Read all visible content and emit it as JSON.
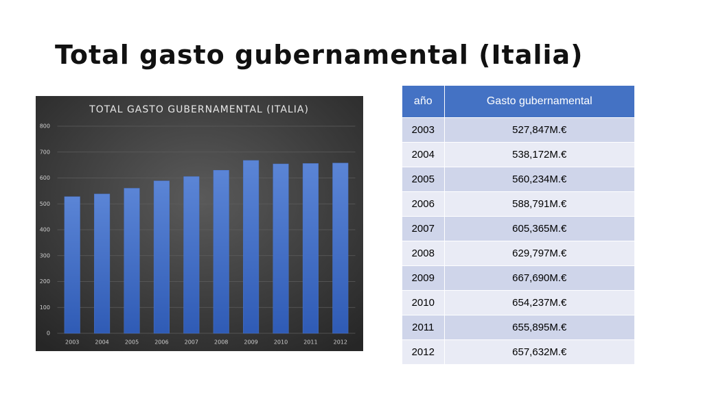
{
  "slide_title": "Total gasto gubernamental (Italia)",
  "chart_data": {
    "type": "bar",
    "title": "TOTAL GASTO GUBERNAMENTAL (ITALIA)",
    "categories": [
      "2003",
      "2004",
      "2005",
      "2006",
      "2007",
      "2008",
      "2009",
      "2010",
      "2011",
      "2012"
    ],
    "values": [
      527.847,
      538.172,
      560.234,
      588.791,
      605.365,
      629.797,
      667.69,
      654.237,
      655.895,
      657.632
    ],
    "color": "#4a74c9",
    "ylim": [
      0,
      800
    ],
    "yticks": [
      0,
      100,
      200,
      300,
      400,
      500,
      600,
      700,
      800
    ],
    "grid": true
  },
  "table": {
    "header": [
      "año",
      "Gasto gubernamental"
    ],
    "rows": [
      [
        "2003",
        "527,847M.€"
      ],
      [
        "2004",
        "538,172M.€"
      ],
      [
        "2005",
        "560,234M.€"
      ],
      [
        "2006",
        "588,791M.€"
      ],
      [
        "2007",
        "605,365M.€"
      ],
      [
        "2008",
        "629,797M.€"
      ],
      [
        "2009",
        "667,690M.€"
      ],
      [
        "2010",
        "654,237M.€"
      ],
      [
        "2011",
        "655,895M.€"
      ],
      [
        "2012",
        "657,632M.€"
      ]
    ]
  }
}
